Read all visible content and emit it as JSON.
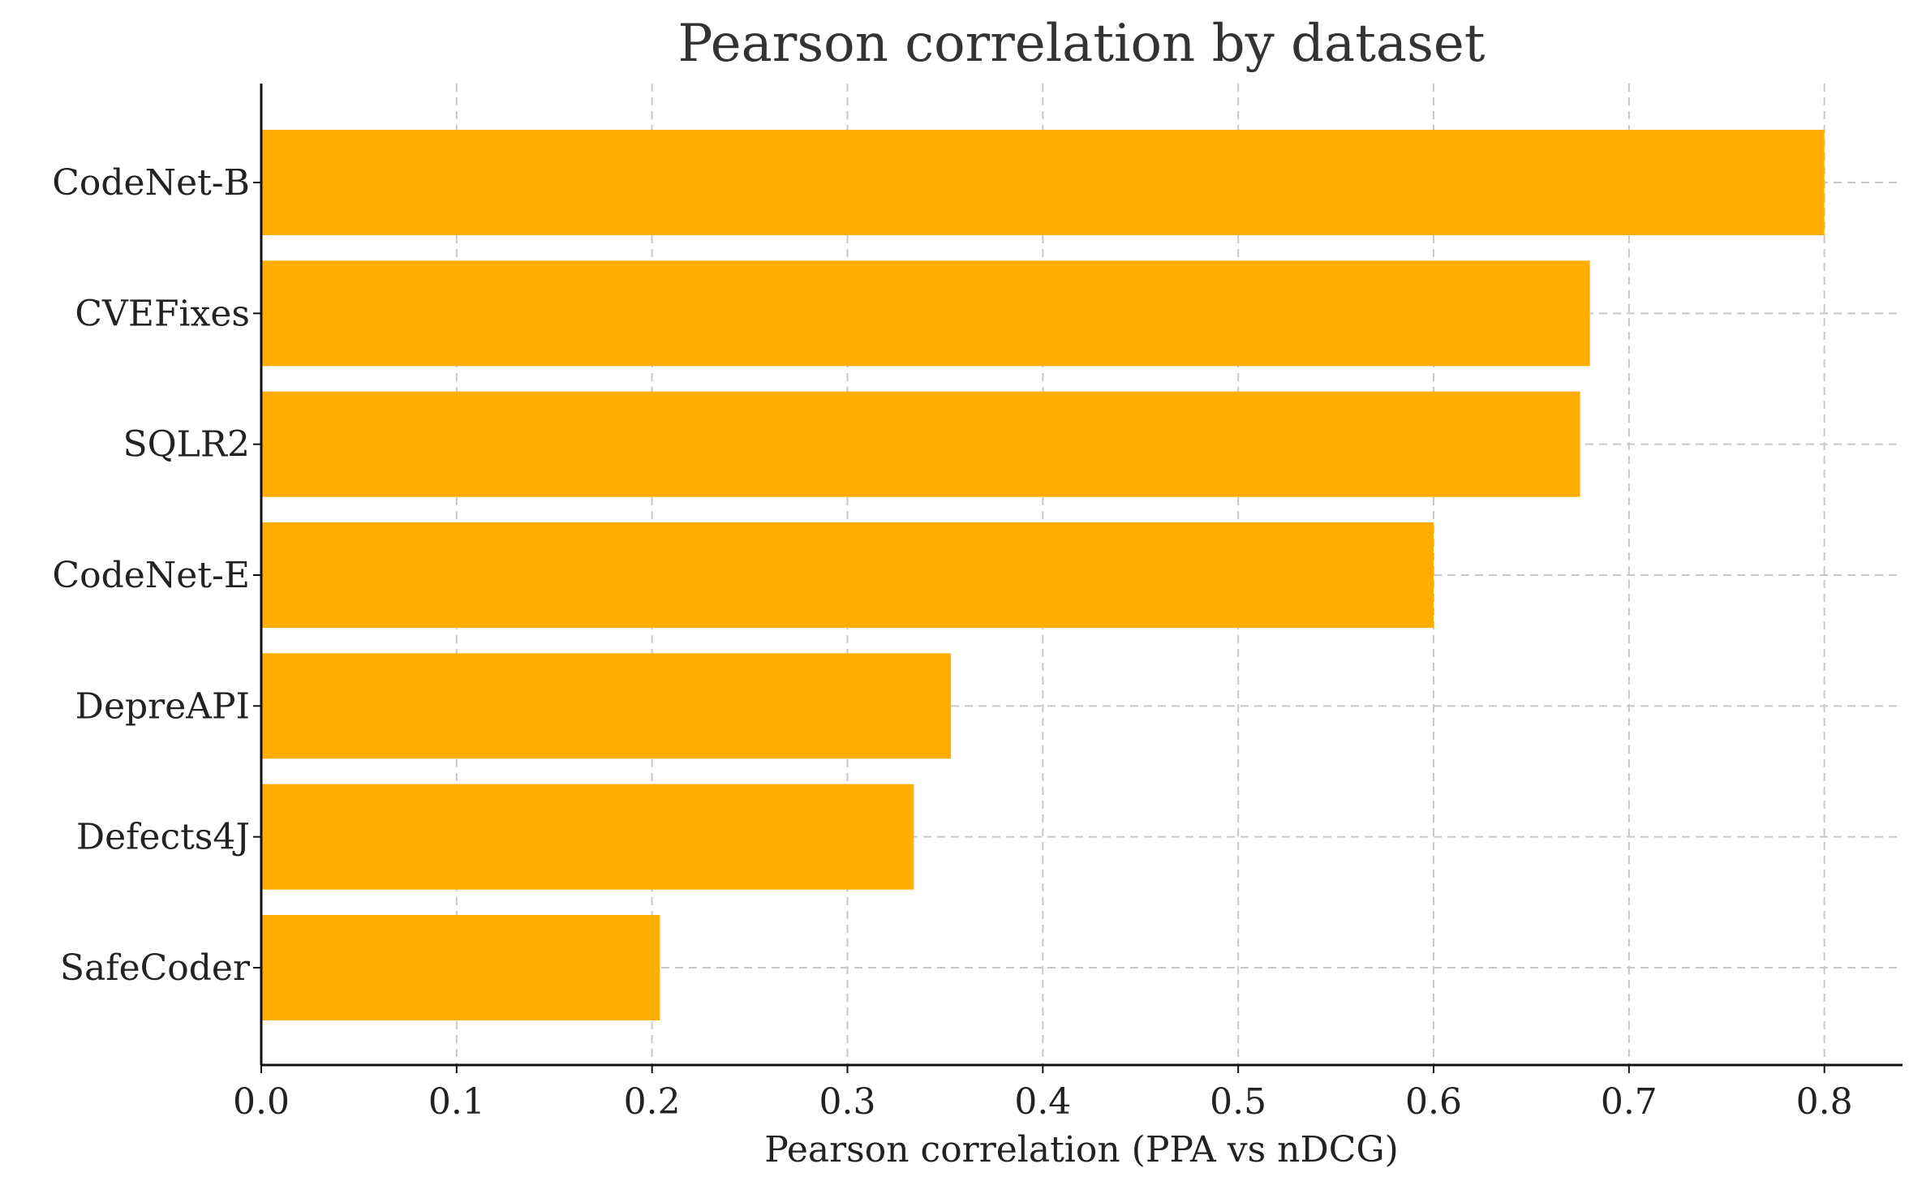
{
  "chart_data": {
    "type": "bar",
    "orientation": "horizontal",
    "title": "Pearson correlation by dataset",
    "xlabel": "Pearson correlation (PPA vs nDCG)",
    "ylabel": "",
    "categories": [
      "CodeNet-B",
      "CVEFixes",
      "SQLR2",
      "CodeNet-E",
      "DepreAPI",
      "Defects4J",
      "SafeCoder"
    ],
    "values": [
      0.8,
      0.68,
      0.675,
      0.6,
      0.353,
      0.334,
      0.204
    ],
    "xlim": [
      0,
      0.84
    ],
    "xticks": [
      0.0,
      0.1,
      0.2,
      0.3,
      0.4,
      0.5,
      0.6,
      0.7,
      0.8
    ],
    "xtick_labels": [
      "0.0",
      "0.1",
      "0.2",
      "0.3",
      "0.4",
      "0.5",
      "0.6",
      "0.7",
      "0.8"
    ],
    "grid": true,
    "bar_color": "#FFAE00"
  }
}
